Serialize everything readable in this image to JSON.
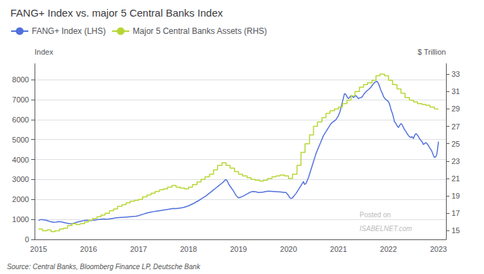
{
  "chart_data": {
    "type": "line",
    "title": "FANG+ Index vs. major 5 Central Banks Index",
    "ylabel": "Index",
    "y2label": "$ Trillion",
    "source": "Source: Central Banks, Bloomberg Finance LP, Deutsche Bank",
    "annotations": [
      "Posted on",
      "ISABELNET.com"
    ],
    "xlim": [
      2014.92,
      2023.15
    ],
    "xticks": [
      2015,
      2016,
      2017,
      2018,
      2019,
      2020,
      2021,
      2022,
      2023
    ],
    "ylim": [
      0,
      8800
    ],
    "yticks": [
      0,
      1000,
      2000,
      3000,
      4000,
      5000,
      6000,
      7000,
      8000
    ],
    "y2lim": [
      14,
      34.2
    ],
    "y2ticks": [
      15,
      17,
      19,
      21,
      23,
      25,
      27,
      29,
      31,
      33
    ],
    "grid": true,
    "legend": "upper left",
    "series": [
      {
        "name": "FANG+ Index (LHS)",
        "axis": "y",
        "line_style": "solid",
        "x": [
          2015.0,
          2015.05,
          2015.1,
          2015.15,
          2015.2,
          2015.25,
          2015.3,
          2015.35,
          2015.4,
          2015.45,
          2015.5,
          2015.55,
          2015.6,
          2015.65,
          2015.7,
          2015.75,
          2015.8,
          2015.85,
          2015.9,
          2015.95,
          2016.0,
          2016.05,
          2016.1,
          2016.15,
          2016.2,
          2016.25,
          2016.3,
          2016.35,
          2016.4,
          2016.45,
          2016.5,
          2016.55,
          2016.6,
          2016.65,
          2016.7,
          2016.75,
          2016.8,
          2016.85,
          2016.9,
          2016.95,
          2017.0,
          2017.05,
          2017.1,
          2017.15,
          2017.2,
          2017.25,
          2017.3,
          2017.35,
          2017.4,
          2017.45,
          2017.5,
          2017.55,
          2017.6,
          2017.65,
          2017.7,
          2017.75,
          2017.8,
          2017.85,
          2017.9,
          2017.95,
          2018.0,
          2018.05,
          2018.1,
          2018.15,
          2018.2,
          2018.25,
          2018.3,
          2018.35,
          2018.4,
          2018.45,
          2018.5,
          2018.55,
          2018.6,
          2018.65,
          2018.7,
          2018.72,
          2018.75,
          2018.78,
          2018.8,
          2018.85,
          2018.9,
          2018.95,
          2019.0,
          2019.05,
          2019.1,
          2019.15,
          2019.2,
          2019.25,
          2019.3,
          2019.35,
          2019.4,
          2019.45,
          2019.5,
          2019.55,
          2019.6,
          2019.65,
          2019.7,
          2019.75,
          2019.8,
          2019.85,
          2019.9,
          2019.95,
          2020.0,
          2020.02,
          2020.05,
          2020.08,
          2020.1,
          2020.15,
          2020.2,
          2020.25,
          2020.3,
          2020.32,
          2020.35,
          2020.4,
          2020.45,
          2020.5,
          2020.55,
          2020.6,
          2020.65,
          2020.7,
          2020.75,
          2020.8,
          2020.85,
          2020.9,
          2020.95,
          2021.0,
          2021.03,
          2021.05,
          2021.08,
          2021.1,
          2021.12,
          2021.15,
          2021.18,
          2021.2,
          2021.22,
          2021.25,
          2021.28,
          2021.3,
          2021.32,
          2021.35,
          2021.38,
          2021.4,
          2021.42,
          2021.45,
          2021.48,
          2021.5,
          2021.55,
          2021.6,
          2021.62,
          2021.65,
          2021.67,
          2021.7,
          2021.72,
          2021.75,
          2021.77,
          2021.8,
          2021.83,
          2021.85,
          2021.88,
          2021.9,
          2021.93,
          2021.95,
          2022.0,
          2022.03,
          2022.05,
          2022.08,
          2022.1,
          2022.12,
          2022.15,
          2022.17,
          2022.2,
          2022.22,
          2022.25,
          2022.27,
          2022.3,
          2022.32,
          2022.35,
          2022.37,
          2022.4,
          2022.42,
          2022.45,
          2022.47,
          2022.5,
          2022.52,
          2022.55,
          2022.57,
          2022.6,
          2022.62,
          2022.65,
          2022.67,
          2022.7,
          2022.72,
          2022.75,
          2022.77,
          2022.8,
          2022.82,
          2022.85,
          2022.87,
          2022.9,
          2022.92,
          2022.95,
          2022.97,
          2023.0
        ],
        "values": [
          950,
          1000,
          980,
          960,
          920,
          880,
          860,
          870,
          890,
          880,
          850,
          820,
          800,
          780,
          810,
          850,
          880,
          910,
          940,
          960,
          950,
          940,
          960,
          980,
          1000,
          1010,
          1020,
          1010,
          1020,
          1040,
          1060,
          1080,
          1090,
          1100,
          1110,
          1120,
          1130,
          1140,
          1150,
          1160,
          1190,
          1230,
          1270,
          1310,
          1340,
          1370,
          1390,
          1410,
          1430,
          1450,
          1470,
          1490,
          1510,
          1530,
          1550,
          1540,
          1560,
          1580,
          1600,
          1640,
          1680,
          1740,
          1800,
          1870,
          1940,
          2020,
          2100,
          2180,
          2280,
          2380,
          2480,
          2580,
          2680,
          2780,
          2880,
          2950,
          3000,
          2900,
          2780,
          2600,
          2420,
          2200,
          2080,
          2120,
          2180,
          2250,
          2320,
          2380,
          2400,
          2380,
          2350,
          2360,
          2370,
          2400,
          2420,
          2410,
          2400,
          2390,
          2380,
          2370,
          2360,
          2350,
          2200,
          2100,
          2050,
          2080,
          2150,
          2300,
          2500,
          2700,
          2900,
          2750,
          2800,
          3100,
          3500,
          3900,
          4300,
          4600,
          4900,
          5200,
          5400,
          5600,
          5800,
          5900,
          6000,
          6200,
          6400,
          6600,
          6900,
          7100,
          7300,
          7250,
          7100,
          7050,
          7100,
          7200,
          7150,
          7100,
          7150,
          7200,
          7100,
          7050,
          7080,
          7100,
          7150,
          7250,
          7400,
          7500,
          7550,
          7620,
          7700,
          7800,
          7850,
          7900,
          7920,
          7800,
          7600,
          7450,
          7300,
          7150,
          7050,
          7000,
          6900,
          6700,
          6500,
          6300,
          6100,
          5900,
          5800,
          5700,
          5600,
          5700,
          5800,
          5750,
          5600,
          5500,
          5400,
          5300,
          5200,
          5150,
          5100,
          5150,
          5050,
          5200,
          5300,
          5250,
          5150,
          5050,
          4950,
          4900,
          4750,
          4800,
          4850,
          4800,
          4700,
          4600,
          4500,
          4400,
          4200,
          4100,
          4150,
          4300,
          4900
        ]
      },
      {
        "name": "Major 5 Central Banks Assets (RHS)",
        "axis": "y2",
        "line_style": "step",
        "x": [
          2015.0,
          2015.08,
          2015.17,
          2015.25,
          2015.33,
          2015.42,
          2015.5,
          2015.58,
          2015.67,
          2015.75,
          2015.83,
          2015.92,
          2016.0,
          2016.08,
          2016.17,
          2016.25,
          2016.33,
          2016.42,
          2016.5,
          2016.58,
          2016.67,
          2016.75,
          2016.83,
          2016.92,
          2017.0,
          2017.08,
          2017.17,
          2017.25,
          2017.33,
          2017.42,
          2017.5,
          2017.58,
          2017.67,
          2017.75,
          2017.83,
          2017.92,
          2018.0,
          2018.08,
          2018.17,
          2018.25,
          2018.33,
          2018.42,
          2018.5,
          2018.58,
          2018.67,
          2018.75,
          2018.83,
          2018.92,
          2019.0,
          2019.08,
          2019.17,
          2019.25,
          2019.33,
          2019.42,
          2019.5,
          2019.58,
          2019.67,
          2019.75,
          2019.83,
          2019.92,
          2020.0,
          2020.08,
          2020.17,
          2020.25,
          2020.33,
          2020.42,
          2020.5,
          2020.58,
          2020.67,
          2020.75,
          2020.83,
          2020.92,
          2021.0,
          2021.08,
          2021.17,
          2021.25,
          2021.33,
          2021.42,
          2021.5,
          2021.58,
          2021.67,
          2021.75,
          2021.83,
          2021.92,
          2022.0,
          2022.08,
          2022.17,
          2022.25,
          2022.33,
          2022.42,
          2022.5,
          2022.58,
          2022.67,
          2022.75,
          2022.83,
          2022.92,
          2023.0
        ],
        "values": [
          15.2,
          15.0,
          15.1,
          14.9,
          15.0,
          15.2,
          15.3,
          15.6,
          15.8,
          15.7,
          15.8,
          16.0,
          16.2,
          16.4,
          16.6,
          16.8,
          17.0,
          17.3,
          17.5,
          17.8,
          18.0,
          18.2,
          18.4,
          18.5,
          18.6,
          18.9,
          19.1,
          19.3,
          19.5,
          19.7,
          19.8,
          20.0,
          20.2,
          20.0,
          19.9,
          19.8,
          20.0,
          20.3,
          20.6,
          20.9,
          21.2,
          21.5,
          22.0,
          22.5,
          22.8,
          22.5,
          22.2,
          21.8,
          21.5,
          21.3,
          21.1,
          20.9,
          20.8,
          20.7,
          20.8,
          21.0,
          21.2,
          21.3,
          21.4,
          21.3,
          21.0,
          21.5,
          22.5,
          24.0,
          25.0,
          26.0,
          27.0,
          27.5,
          28.0,
          28.5,
          28.8,
          29.0,
          29.2,
          29.6,
          30.0,
          30.5,
          31.0,
          31.5,
          31.8,
          32.0,
          32.3,
          32.8,
          33.0,
          32.8,
          32.3,
          31.8,
          31.3,
          30.8,
          30.3,
          30.0,
          29.8,
          29.6,
          29.5,
          29.4,
          29.2,
          29.0,
          29.0
        ]
      }
    ]
  }
}
